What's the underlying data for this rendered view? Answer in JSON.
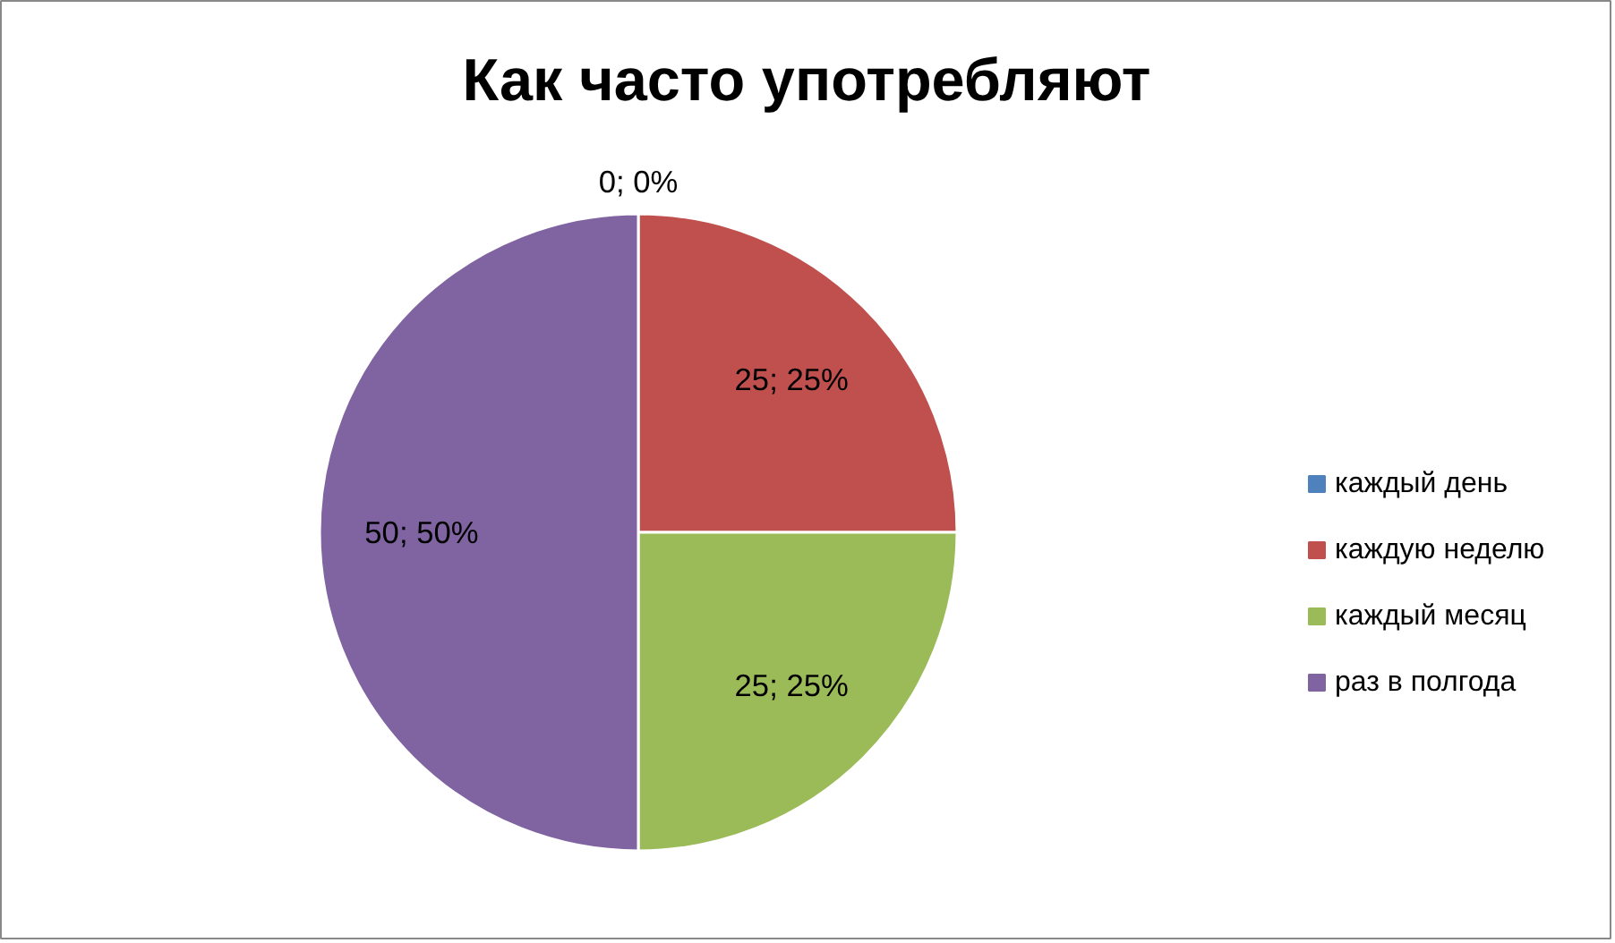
{
  "chart_data": {
    "type": "pie",
    "title": "Как часто употребляют",
    "categories": [
      "каждый день",
      "каждую неделю",
      "каждый месяц",
      "раз в полгода"
    ],
    "values": [
      0,
      25,
      25,
      50
    ],
    "colors": [
      "#4f81bd",
      "#c0504d",
      "#9bbb59",
      "#8064a2"
    ],
    "value_labels": [
      "0; 0%",
      "25; 25%",
      "25; 25%",
      "50; 50%"
    ],
    "legend": "right"
  }
}
